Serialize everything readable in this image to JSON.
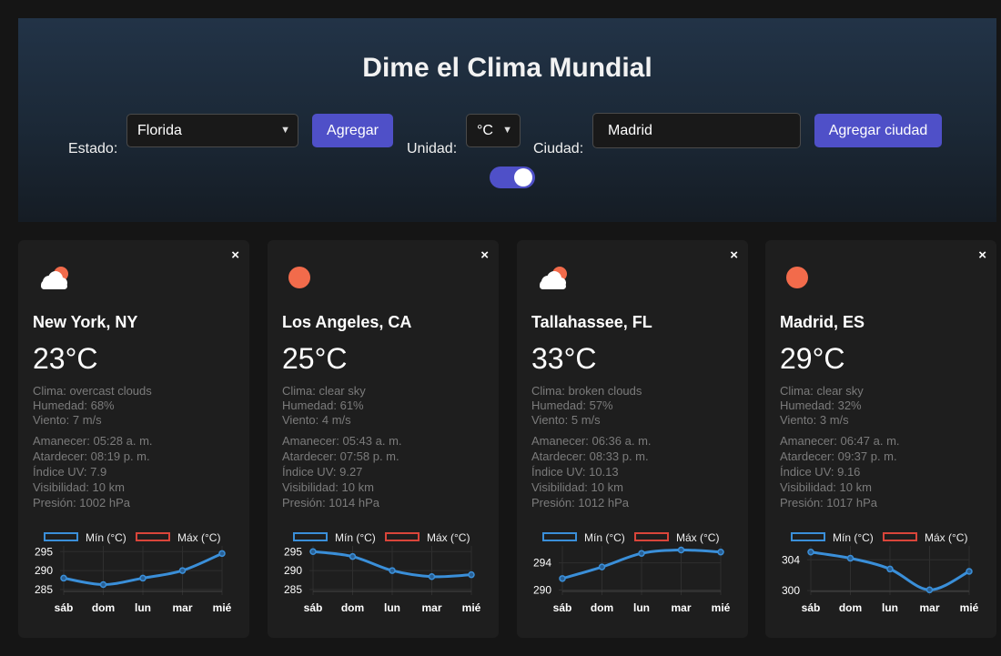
{
  "header": {
    "title": "Dime el Clima Mundial",
    "state_label": "Estado:",
    "state_value": "Florida",
    "add_button": "Agregar",
    "unit_label": "Unidad:",
    "unit_value": "°C",
    "city_label": "Ciudad:",
    "city_value": "Madrid",
    "add_city_button": "Agregar ciudad",
    "toggle_on": true
  },
  "colors": {
    "accent": "#4f50c8",
    "min_series": "#3a8fd9",
    "max_series": "#d9453a",
    "sun": "#f26b4b"
  },
  "legend": {
    "min": "Mín (°C)",
    "max": "Máx (°C)"
  },
  "cards": [
    {
      "icon": "cloudy-sun-icon",
      "close": "×",
      "city": "New York, NY",
      "temp": "23°C",
      "clima": "Clima: overcast clouds",
      "humedad": "Humedad: 68%",
      "viento": "Viento: 7 m/s",
      "amanecer": "Amanecer: 05:28 a. m.",
      "atardecer": "Atardecer: 08:19 p. m.",
      "uv": "Índice UV: 7.9",
      "visibilidad": "Visibilidad: 10 km",
      "presion": "Presión: 1002 hPa"
    },
    {
      "icon": "sun-icon",
      "close": "×",
      "city": "Los Angeles, CA",
      "temp": "25°C",
      "clima": "Clima: clear sky",
      "humedad": "Humedad: 61%",
      "viento": "Viento: 4 m/s",
      "amanecer": "Amanecer: 05:43 a. m.",
      "atardecer": "Atardecer: 07:58 p. m.",
      "uv": "Índice UV: 9.27",
      "visibilidad": "Visibilidad: 10 km",
      "presion": "Presión: 1014 hPa"
    },
    {
      "icon": "cloudy-sun-icon",
      "close": "×",
      "city": "Tallahassee, FL",
      "temp": "33°C",
      "clima": "Clima: broken clouds",
      "humedad": "Humedad: 57%",
      "viento": "Viento: 5 m/s",
      "amanecer": "Amanecer: 06:36 a. m.",
      "atardecer": "Atardecer: 08:33 p. m.",
      "uv": "Índice UV: 10.13",
      "visibilidad": "Visibilidad: 10 km",
      "presion": "Presión: 1012 hPa"
    },
    {
      "icon": "sun-icon",
      "close": "×",
      "city": "Madrid, ES",
      "temp": "29°C",
      "clima": "Clima: clear sky",
      "humedad": "Humedad: 32%",
      "viento": "Viento: 3 m/s",
      "amanecer": "Amanecer: 06:47 a. m.",
      "atardecer": "Atardecer: 09:37 p. m.",
      "uv": "Índice UV: 9.16",
      "visibilidad": "Visibilidad: 10 km",
      "presion": "Presión: 1017 hPa"
    }
  ],
  "chart_data": [
    {
      "type": "line",
      "categories": [
        "sáb",
        "dom",
        "lun",
        "mar",
        "mié"
      ],
      "series": [
        {
          "name": "Mín (°C)",
          "values": [
            288,
            286.3,
            288,
            290,
            294.5
          ]
        }
      ],
      "legend": [
        "Mín (°C)",
        "Máx (°C)"
      ],
      "yticks": [
        285,
        290,
        295
      ],
      "ylim": [
        284.5,
        296.5
      ]
    },
    {
      "type": "line",
      "categories": [
        "sáb",
        "dom",
        "lun",
        "mar",
        "mié"
      ],
      "series": [
        {
          "name": "Mín (°C)",
          "values": [
            295,
            293.7,
            290,
            288.4,
            288.9
          ]
        }
      ],
      "legend": [
        "Mín (°C)",
        "Máx (°C)"
      ],
      "yticks": [
        285,
        290,
        295
      ],
      "ylim": [
        284.5,
        296.5
      ]
    },
    {
      "type": "line",
      "categories": [
        "sáb",
        "dom",
        "lun",
        "mar",
        "mié"
      ],
      "series": [
        {
          "name": "Mín (°C)",
          "values": [
            291.7,
            293.4,
            295.4,
            295.9,
            295.6
          ]
        }
      ],
      "legend": [
        "Mín (°C)",
        "Máx (°C)"
      ],
      "yticks": [
        290,
        294
      ],
      "ylim": [
        289.8,
        296.5
      ]
    },
    {
      "type": "line",
      "categories": [
        "sáb",
        "dom",
        "lun",
        "mar",
        "mié"
      ],
      "series": [
        {
          "name": "Mín (°C)",
          "values": [
            305,
            304.2,
            302.8,
            300.1,
            302.5
          ]
        }
      ],
      "legend": [
        "Mín (°C)",
        "Máx (°C)"
      ],
      "yticks": [
        300,
        304
      ],
      "ylim": [
        299.9,
        305.8
      ]
    }
  ]
}
